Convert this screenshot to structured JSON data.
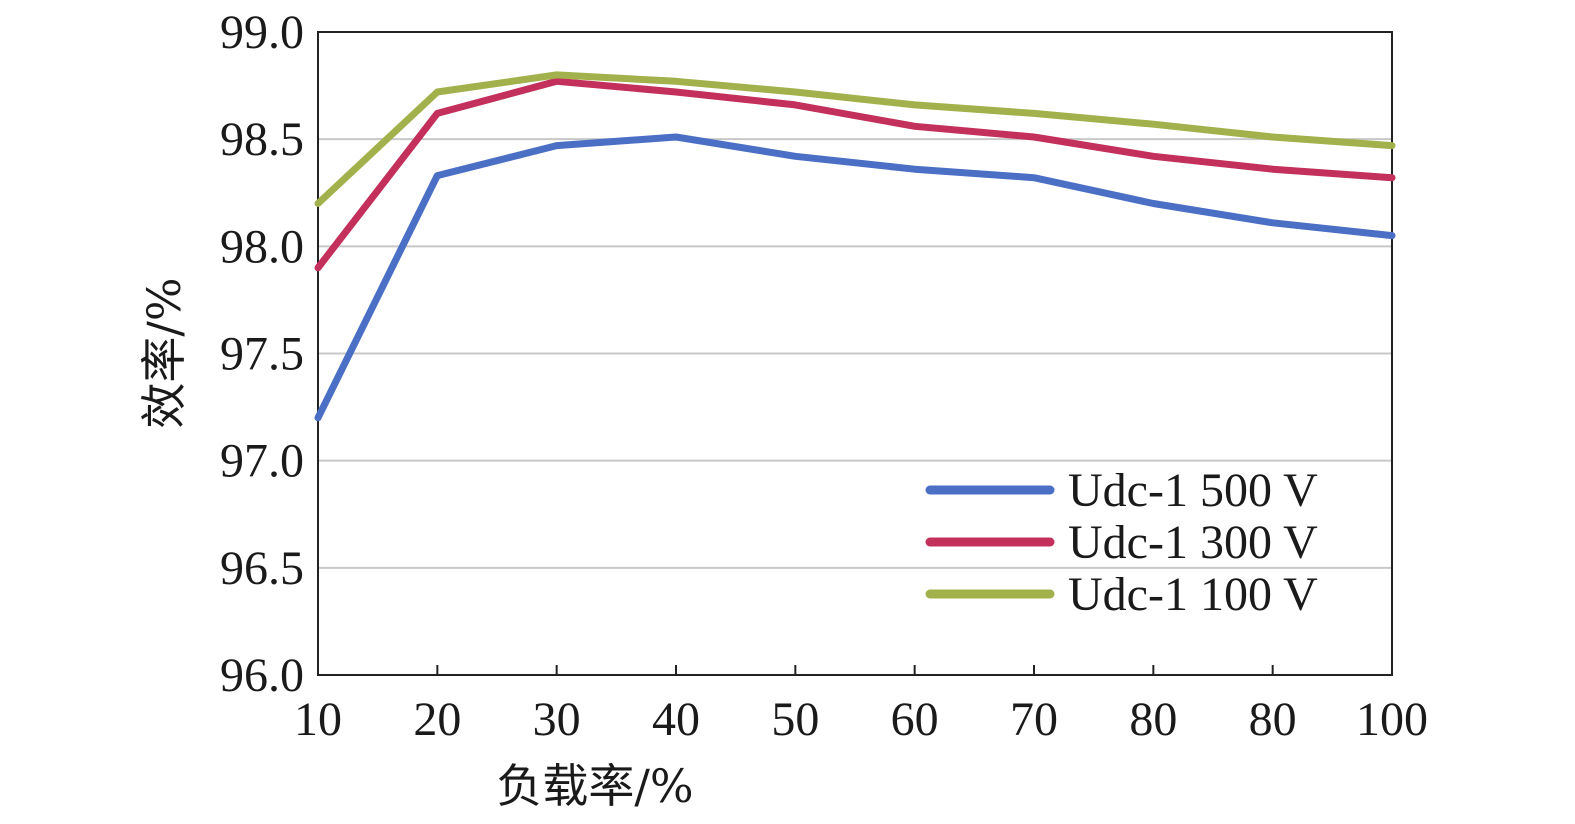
{
  "chart_data": {
    "type": "line",
    "xlabel": "负载率/%",
    "ylabel": "效率/%",
    "x_tick_labels": [
      "10",
      "20",
      "30",
      "40",
      "50",
      "60",
      "70",
      "80",
      "80",
      "100"
    ],
    "y_ticks": [
      "96.0",
      "96.5",
      "97.0",
      "97.5",
      "98.0",
      "98.5",
      "99.0"
    ],
    "ylim": [
      96.0,
      99.0
    ],
    "grid": true,
    "legend_position": "bottom-right",
    "series": [
      {
        "name": "Udc-1 500 V",
        "color": "#4a6fc4",
        "values": [
          97.2,
          98.33,
          98.47,
          98.51,
          98.42,
          98.36,
          98.32,
          98.2,
          98.11,
          98.05
        ]
      },
      {
        "name": "Udc-1 300 V",
        "color": "#c4305c",
        "values": [
          97.9,
          98.62,
          98.77,
          98.72,
          98.66,
          98.56,
          98.51,
          98.42,
          98.36,
          98.32
        ]
      },
      {
        "name": "Udc-1 100 V",
        "color": "#a2b14b",
        "values": [
          98.2,
          98.72,
          98.8,
          98.77,
          98.72,
          98.66,
          98.62,
          98.57,
          98.51,
          98.47
        ]
      }
    ]
  }
}
